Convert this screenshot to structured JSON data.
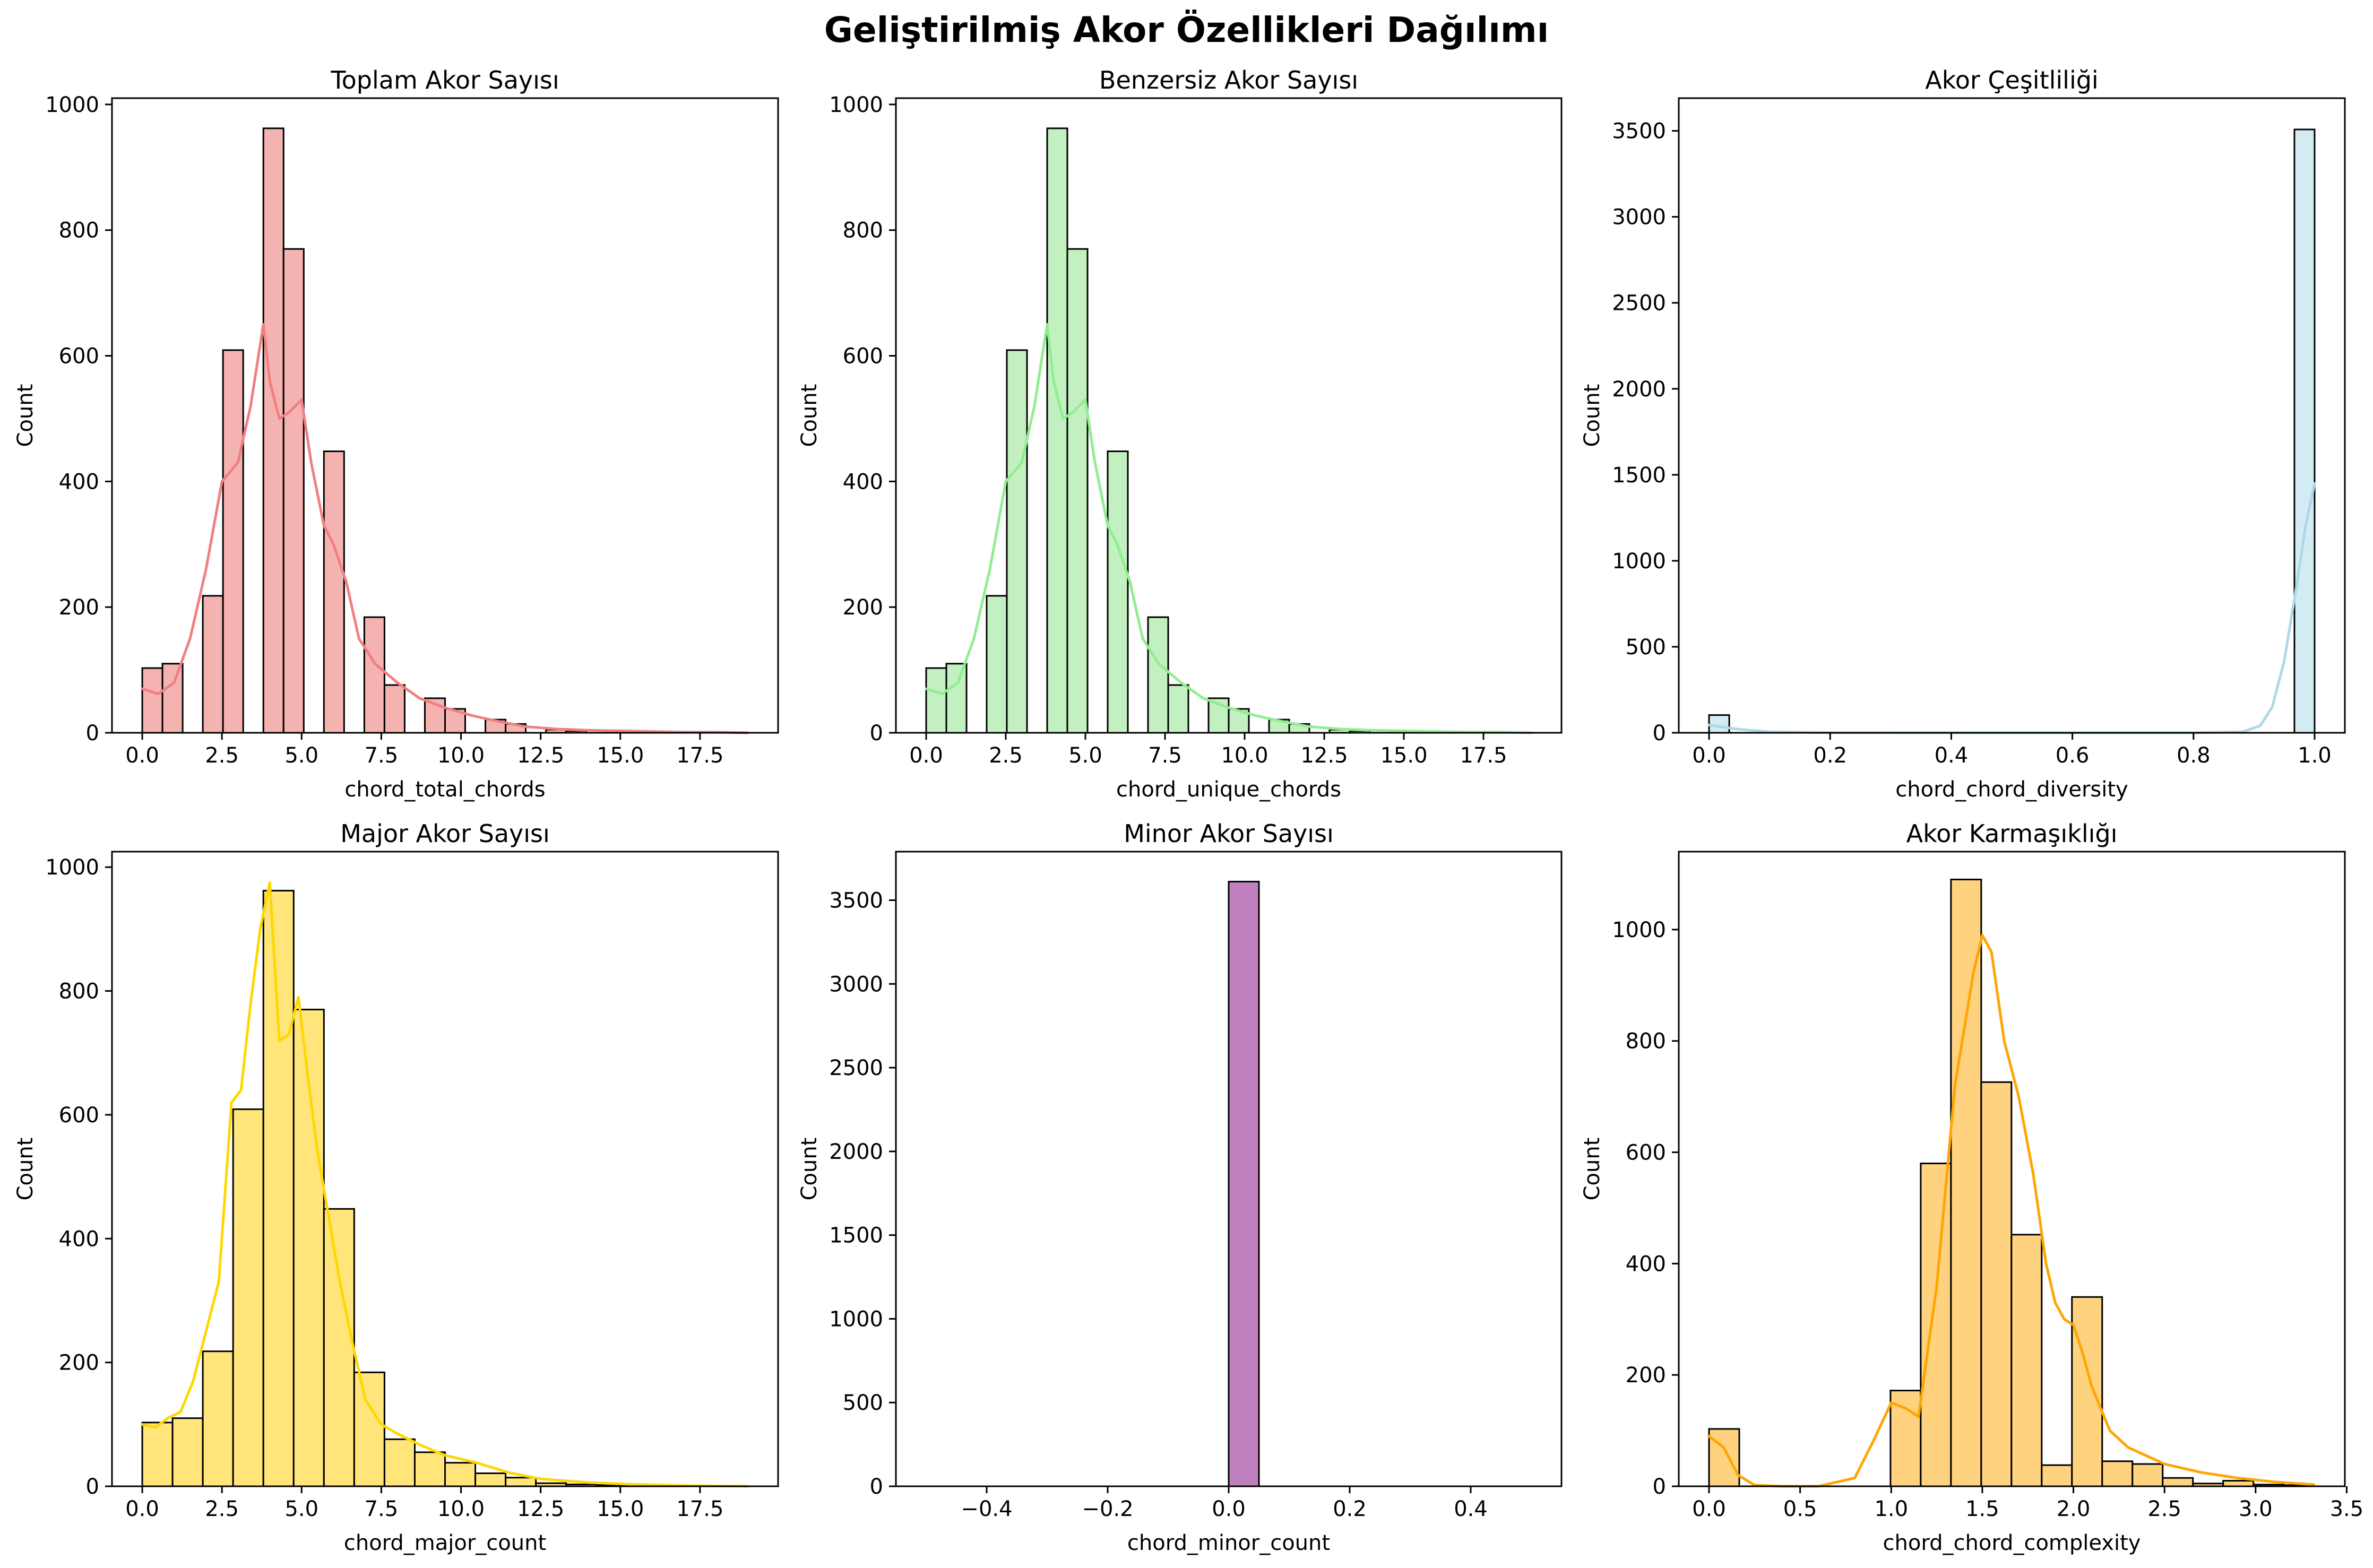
{
  "figure_title": "Geliştirilmiş Akor Özellikleri Dağılımı",
  "chart_data": [
    {
      "type": "bar",
      "variant": "histogram",
      "title": "Toplam Akor Sayısı",
      "xlabel": "chord_total_chords",
      "ylabel": "Count",
      "xlim": [
        -0.95,
        19.95
      ],
      "ylim": [
        0,
        1010
      ],
      "xticks": [
        0,
        2.5,
        5,
        7.5,
        10,
        12.5,
        15,
        17.5
      ],
      "xtick_labels": [
        "0.0",
        "2.5",
        "5.0",
        "7.5",
        "10.0",
        "12.5",
        "15.0",
        "17.5"
      ],
      "yticks": [
        0,
        200,
        400,
        600,
        800,
        1000
      ],
      "ytick_labels": [
        "0",
        "200",
        "400",
        "600",
        "800",
        "1000"
      ],
      "fill_color": "#f4b3b1",
      "kde_color": "#f08080",
      "bin_edges": [
        0,
        0.633,
        1.267,
        1.9,
        2.533,
        3.167,
        3.8,
        4.433,
        5.067,
        5.7,
        6.333,
        6.967,
        7.6,
        8.233,
        8.867,
        9.5,
        10.133,
        10.767,
        11.4,
        12.033,
        12.667,
        13.3,
        13.933,
        14.567,
        15.2,
        15.833,
        16.467,
        17.1,
        17.733,
        18.367,
        19
      ],
      "counts": [
        103,
        110,
        0,
        218,
        609,
        0,
        962,
        770,
        0,
        448,
        0,
        184,
        76,
        0,
        55,
        38,
        0,
        21,
        14,
        0,
        5,
        3,
        0,
        2,
        1,
        0,
        1,
        0,
        1,
        0
      ],
      "kde": {
        "x": [
          0,
          0.5,
          1,
          1.5,
          2,
          2.5,
          3,
          3.4,
          3.8,
          4,
          4.3,
          4.6,
          5,
          5.3,
          5.7,
          6,
          6.4,
          6.8,
          7.3,
          8,
          8.7,
          9.5,
          10.3,
          11,
          12,
          13,
          14,
          15,
          16,
          17,
          18,
          19
        ],
        "y": [
          70,
          62,
          80,
          150,
          260,
          400,
          430,
          520,
          650,
          560,
          500,
          510,
          530,
          430,
          330,
          300,
          240,
          150,
          110,
          80,
          55,
          40,
          28,
          20,
          10,
          6,
          4,
          3,
          2,
          1,
          1,
          0
        ]
      }
    },
    {
      "type": "bar",
      "variant": "histogram",
      "title": "Benzersiz Akor Sayısı",
      "xlabel": "chord_unique_chords",
      "ylabel": "Count",
      "xlim": [
        -0.95,
        19.95
      ],
      "ylim": [
        0,
        1010
      ],
      "xticks": [
        0,
        2.5,
        5,
        7.5,
        10,
        12.5,
        15,
        17.5
      ],
      "xtick_labels": [
        "0.0",
        "2.5",
        "5.0",
        "7.5",
        "10.0",
        "12.5",
        "15.0",
        "17.5"
      ],
      "yticks": [
        0,
        200,
        400,
        600,
        800,
        1000
      ],
      "ytick_labels": [
        "0",
        "200",
        "400",
        "600",
        "800",
        "1000"
      ],
      "fill_color": "#c3f0c0",
      "kde_color": "#90ee90",
      "bin_edges": [
        0,
        0.633,
        1.267,
        1.9,
        2.533,
        3.167,
        3.8,
        4.433,
        5.067,
        5.7,
        6.333,
        6.967,
        7.6,
        8.233,
        8.867,
        9.5,
        10.133,
        10.767,
        11.4,
        12.033,
        12.667,
        13.3,
        13.933,
        14.567,
        15.2,
        15.833,
        16.467,
        17.1,
        17.733,
        18.367,
        19
      ],
      "counts": [
        103,
        110,
        0,
        218,
        609,
        0,
        962,
        770,
        0,
        448,
        0,
        184,
        76,
        0,
        55,
        38,
        0,
        21,
        14,
        0,
        5,
        3,
        0,
        2,
        1,
        0,
        1,
        0,
        1,
        0
      ],
      "kde": {
        "x": [
          0,
          0.5,
          1,
          1.5,
          2,
          2.5,
          3,
          3.4,
          3.8,
          4,
          4.3,
          4.6,
          5,
          5.3,
          5.7,
          6,
          6.4,
          6.8,
          7.3,
          8,
          8.7,
          9.5,
          10.3,
          11,
          12,
          13,
          14,
          15,
          16,
          17,
          18,
          19
        ],
        "y": [
          70,
          62,
          80,
          150,
          260,
          400,
          430,
          520,
          650,
          560,
          500,
          510,
          530,
          430,
          330,
          300,
          240,
          150,
          110,
          80,
          55,
          40,
          28,
          20,
          10,
          6,
          4,
          3,
          2,
          1,
          1,
          0
        ]
      }
    },
    {
      "type": "bar",
      "variant": "histogram",
      "title": "Akor Çeşitliliği",
      "xlabel": "chord_chord_diversity",
      "ylabel": "Count",
      "xlim": [
        -0.05,
        1.05
      ],
      "ylim": [
        0,
        3690
      ],
      "xticks": [
        0,
        0.2,
        0.4,
        0.6,
        0.8,
        1.0
      ],
      "xtick_labels": [
        "0.0",
        "0.2",
        "0.4",
        "0.6",
        "0.8",
        "1.0"
      ],
      "yticks": [
        0,
        500,
        1000,
        1500,
        2000,
        2500,
        3000,
        3500
      ],
      "ytick_labels": [
        "0",
        "500",
        "1000",
        "1500",
        "2000",
        "2500",
        "3000",
        "3500"
      ],
      "fill_color": "#d3ecf3",
      "kde_color": "#add8e6",
      "bin_edges": [
        0,
        0.0333,
        0.0667,
        0.1,
        0.1333,
        0.1667,
        0.2,
        0.2333,
        0.2667,
        0.3,
        0.3333,
        0.3667,
        0.4,
        0.4333,
        0.4667,
        0.5,
        0.5333,
        0.5667,
        0.6,
        0.6333,
        0.6667,
        0.7,
        0.7333,
        0.7667,
        0.8,
        0.8333,
        0.8667,
        0.9,
        0.9333,
        0.9667,
        1.0
      ],
      "counts": [
        103,
        0,
        0,
        0,
        0,
        0,
        0,
        0,
        0,
        0,
        0,
        0,
        0,
        0,
        0,
        0,
        0,
        0,
        0,
        0,
        0,
        0,
        0,
        0,
        0,
        0,
        0,
        0,
        0,
        3508
      ],
      "kde": {
        "x": [
          0,
          0.02,
          0.05,
          0.1,
          0.2,
          0.4,
          0.6,
          0.8,
          0.88,
          0.91,
          0.93,
          0.95,
          0.97,
          0.985,
          1.0
        ],
        "y": [
          45,
          35,
          20,
          6,
          1,
          0,
          0,
          0,
          5,
          40,
          150,
          420,
          850,
          1200,
          1450
        ]
      }
    },
    {
      "type": "bar",
      "variant": "histogram",
      "title": "Major Akor Sayısı",
      "xlabel": "chord_major_count",
      "ylabel": "Count",
      "xlim": [
        -0.95,
        19.95
      ],
      "ylim": [
        0,
        1025
      ],
      "xticks": [
        0,
        2.5,
        5,
        7.5,
        10,
        12.5,
        15,
        17.5
      ],
      "xtick_labels": [
        "0.0",
        "2.5",
        "5.0",
        "7.5",
        "10.0",
        "12.5",
        "15.0",
        "17.5"
      ],
      "yticks": [
        0,
        200,
        400,
        600,
        800,
        1000
      ],
      "ytick_labels": [
        "0",
        "200",
        "400",
        "600",
        "800",
        "1000"
      ],
      "fill_color": "#ffe57a",
      "kde_color": "#ffd700",
      "bin_edges": [
        0,
        0.95,
        1.9,
        2.85,
        3.8,
        4.75,
        5.7,
        6.65,
        7.6,
        8.55,
        9.5,
        10.45,
        11.4,
        12.35,
        13.3,
        14.25,
        15.2,
        16.15,
        17.1,
        18.05,
        19
      ],
      "counts": [
        103,
        110,
        218,
        609,
        962,
        770,
        448,
        184,
        76,
        55,
        38,
        21,
        14,
        5,
        3,
        2,
        1,
        1,
        0,
        0
      ],
      "kde": {
        "x": [
          0,
          0.4,
          0.8,
          1.2,
          1.6,
          2,
          2.4,
          2.8,
          3.1,
          3.4,
          3.7,
          4,
          4.3,
          4.6,
          4.9,
          5.2,
          5.5,
          5.8,
          6.2,
          6.6,
          7,
          7.5,
          8,
          8.8,
          9.5,
          10.5,
          11.5,
          12.5,
          14,
          15.5,
          17,
          19
        ],
        "y": [
          100,
          95,
          110,
          120,
          170,
          250,
          330,
          620,
          640,
          780,
          900,
          975,
          720,
          730,
          790,
          660,
          540,
          450,
          330,
          230,
          140,
          100,
          85,
          65,
          50,
          38,
          22,
          12,
          6,
          3,
          1,
          0
        ]
      }
    },
    {
      "type": "bar",
      "variant": "histogram",
      "title": "Minor Akor Sayısı",
      "xlabel": "chord_minor_count",
      "ylabel": "Count",
      "xlim": [
        -0.55,
        0.55
      ],
      "ylim": [
        0,
        3790
      ],
      "xticks": [
        -0.4,
        -0.2,
        0,
        0.2,
        0.4
      ],
      "xtick_labels": [
        "−0.4",
        "−0.2",
        "0.0",
        "0.2",
        "0.4"
      ],
      "yticks": [
        0,
        500,
        1000,
        1500,
        2000,
        2500,
        3000,
        3500
      ],
      "ytick_labels": [
        "0",
        "500",
        "1000",
        "1500",
        "2000",
        "2500",
        "3000",
        "3500"
      ],
      "fill_color": "#bf80bf",
      "kde_color": "#800080",
      "bin_edges": [
        -0.5,
        -0.45,
        -0.4,
        -0.35,
        -0.3,
        -0.25,
        -0.2,
        -0.15,
        -0.1,
        -0.05,
        0,
        0.05,
        0.1,
        0.15,
        0.2,
        0.25,
        0.3,
        0.35,
        0.4,
        0.45,
        0.5
      ],
      "counts": [
        0,
        0,
        0,
        0,
        0,
        0,
        0,
        0,
        0,
        0,
        3611,
        0,
        0,
        0,
        0,
        0,
        0,
        0,
        0,
        0
      ],
      "kde": null
    },
    {
      "type": "bar",
      "variant": "histogram",
      "title": "Akor Karmaşıklığı",
      "xlabel": "chord_chord_complexity",
      "ylabel": "Count",
      "xlim": [
        -0.166,
        3.49
      ],
      "ylim": [
        0,
        1140
      ],
      "xticks": [
        0,
        0.5,
        1,
        1.5,
        2,
        2.5,
        3,
        3.5
      ],
      "xtick_labels": [
        "0.0",
        "0.5",
        "1.0",
        "1.5",
        "2.0",
        "2.5",
        "3.0",
        "3.5"
      ],
      "yticks": [
        0,
        200,
        400,
        600,
        800,
        1000
      ],
      "ytick_labels": [
        "0",
        "200",
        "400",
        "600",
        "800",
        "1000"
      ],
      "fill_color": "#ffd280",
      "kde_color": "#ffa500",
      "bin_edges": [
        0,
        0.166,
        0.332,
        0.498,
        0.664,
        0.83,
        0.996,
        1.162,
        1.328,
        1.494,
        1.66,
        1.826,
        1.992,
        2.158,
        2.324,
        2.49,
        2.656,
        2.822,
        2.988,
        3.154,
        3.32
      ],
      "counts": [
        103,
        0,
        0,
        0,
        0,
        0,
        172,
        580,
        1090,
        726,
        452,
        38,
        340,
        45,
        40,
        15,
        5,
        10,
        3,
        2
      ],
      "kde": {
        "x": [
          0,
          0.08,
          0.16,
          0.25,
          0.4,
          0.6,
          0.8,
          0.9,
          1.0,
          1.08,
          1.15,
          1.25,
          1.35,
          1.45,
          1.5,
          1.55,
          1.62,
          1.7,
          1.78,
          1.85,
          1.9,
          1.95,
          2.0,
          2.05,
          2.1,
          2.2,
          2.3,
          2.5,
          2.7,
          2.9,
          3.1,
          3.32
        ],
        "y": [
          90,
          70,
          20,
          2,
          0,
          0,
          15,
          80,
          150,
          140,
          125,
          360,
          720,
          920,
          990,
          960,
          800,
          700,
          560,
          400,
          330,
          300,
          290,
          240,
          180,
          100,
          70,
          40,
          25,
          15,
          8,
          3
        ]
      }
    }
  ]
}
